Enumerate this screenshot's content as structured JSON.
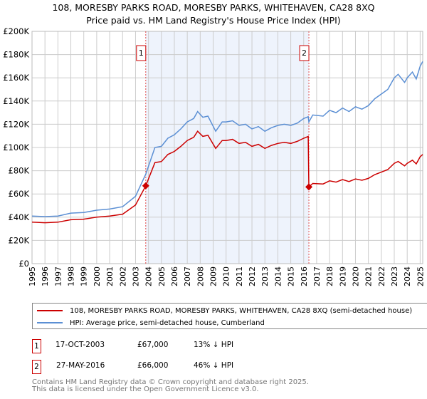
{
  "title_line1": "108, MORESBY PARKS ROAD, MORESBY PARKS, WHITEHAVEN, CA28 8XQ",
  "title_line2": "Price paid vs. HM Land Registry's House Price Index (HPI)",
  "colors": {
    "property": "#cc0000",
    "hpi": "#5b8fd4",
    "shade": "#eef3fc",
    "grid": "#cccccc",
    "marker_line": "#e05050"
  },
  "chart_data": {
    "type": "line",
    "title": "Price paid vs. HM Land Registry's House Price Index (HPI)",
    "xlim": [
      1995,
      2025.2
    ],
    "ylim": [
      0,
      200000
    ],
    "x_ticks": [
      "1995",
      "1996",
      "1997",
      "1998",
      "1999",
      "2000",
      "2001",
      "2002",
      "2003",
      "2004",
      "2005",
      "2006",
      "2007",
      "2008",
      "2009",
      "2010",
      "2011",
      "2012",
      "2013",
      "2014",
      "2015",
      "2016",
      "2017",
      "2018",
      "2019",
      "2020",
      "2021",
      "2022",
      "2023",
      "2024",
      "2025"
    ],
    "y_ticks": [
      {
        "value": 0,
        "label": "£0"
      },
      {
        "value": 20000,
        "label": "£20K"
      },
      {
        "value": 40000,
        "label": "£40K"
      },
      {
        "value": 60000,
        "label": "£60K"
      },
      {
        "value": 80000,
        "label": "£80K"
      },
      {
        "value": 100000,
        "label": "£100K"
      },
      {
        "value": 120000,
        "label": "£120K"
      },
      {
        "value": 140000,
        "label": "£140K"
      },
      {
        "value": 160000,
        "label": "£160K"
      },
      {
        "value": 180000,
        "label": "£180K"
      },
      {
        "value": 200000,
        "label": "£200K"
      }
    ],
    "grid": true,
    "shaded_range": [
      2003.79,
      2016.4
    ],
    "series": [
      {
        "name": "108, MORESBY PARKS ROAD, MORESBY PARKS, WHITEHAVEN, CA28 8XQ (semi-detached house)",
        "color": "#cc0000",
        "x": [
          1995,
          1996,
          1997,
          1998,
          1999,
          2000,
          2001,
          2002,
          2003,
          2003.79,
          2004.5,
          2005,
          2005.5,
          2006,
          2006.5,
          2007,
          2007.5,
          2007.8,
          2008.2,
          2008.6,
          2009.2,
          2009.7,
          2010,
          2010.5,
          2011,
          2011.5,
          2012,
          2012.5,
          2013,
          2013.5,
          2014,
          2014.5,
          2015,
          2015.5,
          2016,
          2016.35,
          2016.4,
          2016.7,
          2017.5,
          2018,
          2018.5,
          2019,
          2019.5,
          2020,
          2020.5,
          2021,
          2021.5,
          2022,
          2022.5,
          2023,
          2023.3,
          2023.8,
          2024,
          2024.4,
          2024.7,
          2025,
          2025.2
        ],
        "y": [
          35700,
          35200,
          35700,
          37800,
          38300,
          40000,
          40900,
          42600,
          50500,
          67000,
          87000,
          87900,
          94000,
          96600,
          101000,
          106000,
          108800,
          114000,
          109600,
          110500,
          99200,
          106000,
          106000,
          107000,
          103500,
          104400,
          101000,
          102700,
          99200,
          101800,
          103500,
          104400,
          103500,
          105300,
          108000,
          109500,
          66000,
          69000,
          68600,
          71300,
          70200,
          72400,
          70700,
          72900,
          71800,
          73400,
          76700,
          78800,
          81000,
          86400,
          88000,
          84200,
          86400,
          89100,
          85900,
          92000,
          94000
        ]
      },
      {
        "name": "HPI: Average price, semi-detached house, Cumberland",
        "color": "#5b8fd4",
        "x": [
          1995,
          1996,
          1997,
          1998,
          1999,
          2000,
          2001,
          2002,
          2003,
          2003.79,
          2004.5,
          2005,
          2005.5,
          2006,
          2006.5,
          2007,
          2007.5,
          2007.8,
          2008.2,
          2008.6,
          2009.2,
          2009.7,
          2010,
          2010.5,
          2011,
          2011.5,
          2012,
          2012.5,
          2013,
          2013.5,
          2014,
          2014.5,
          2015,
          2015.5,
          2016,
          2016.35,
          2016.4,
          2016.7,
          2017.5,
          2018,
          2018.5,
          2019,
          2019.5,
          2020,
          2020.5,
          2021,
          2021.5,
          2022,
          2022.5,
          2023,
          2023.3,
          2023.8,
          2024,
          2024.4,
          2024.7,
          2025,
          2025.2
        ],
        "y": [
          41000,
          40500,
          41000,
          43500,
          44000,
          46000,
          47000,
          49000,
          58000,
          77000,
          100000,
          101000,
          108000,
          111000,
          116000,
          122000,
          125000,
          131000,
          126000,
          127000,
          114000,
          122000,
          122000,
          123000,
          119000,
          120000,
          116000,
          118000,
          114000,
          117000,
          119000,
          120000,
          119000,
          121000,
          125000,
          126500,
          122000,
          128000,
          127000,
          132000,
          130000,
          134000,
          131000,
          135000,
          133000,
          136000,
          142000,
          146000,
          150000,
          160000,
          163000,
          156000,
          160000,
          165000,
          159000,
          170000,
          174000
        ]
      }
    ],
    "sales": [
      {
        "label": "1",
        "x": 2003.79,
        "y": 67000
      },
      {
        "label": "2",
        "x": 2016.4,
        "y": 66000
      }
    ],
    "legend_placement": "bottom"
  },
  "legend": {
    "property": "108, MORESBY PARKS ROAD, MORESBY PARKS, WHITEHAVEN, CA28 8XQ (semi-detached house)",
    "hpi": "HPI: Average price, semi-detached house, Cumberland"
  },
  "transactions": [
    {
      "num": "1",
      "date": "17-OCT-2003",
      "price": "£67,000",
      "hpi": "13% ↓ HPI"
    },
    {
      "num": "2",
      "date": "27-MAY-2016",
      "price": "£66,000",
      "hpi": "46% ↓ HPI"
    }
  ],
  "footer": {
    "line1": "Contains HM Land Registry data © Crown copyright and database right 2025.",
    "line2": "This data is licensed under the Open Government Licence v3.0."
  }
}
